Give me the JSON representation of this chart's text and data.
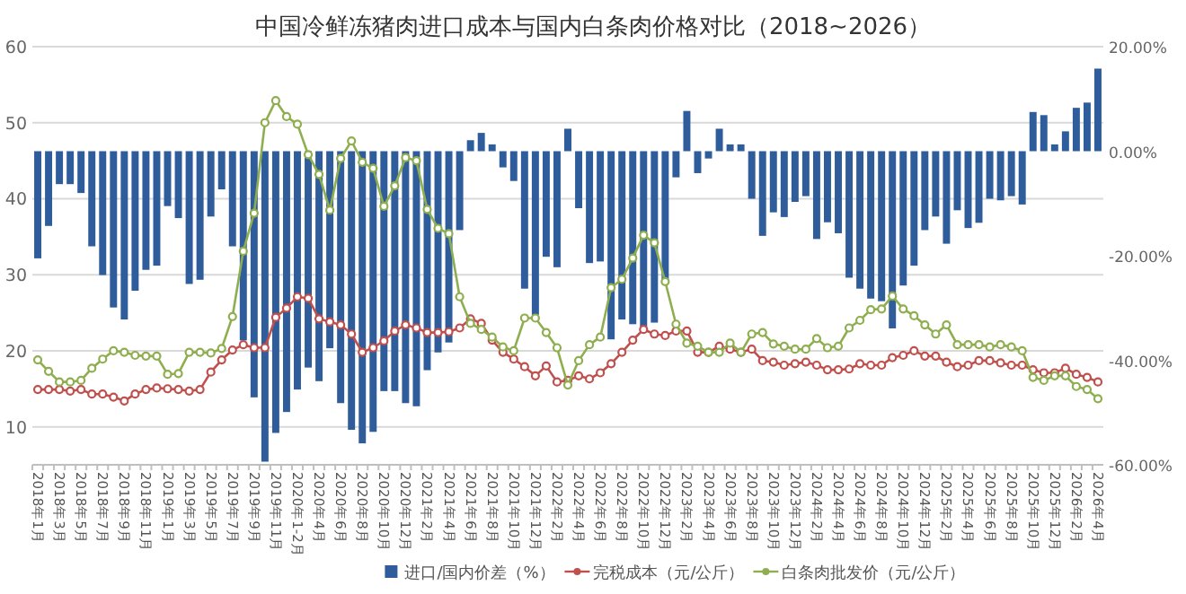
{
  "chart_data": {
    "type": "bar",
    "title": "中国冷鲜冻猪肉进口成本与国内白条肉价格对比（2018~2026）",
    "categories": [
      "2018年1月",
      null,
      "2018年3月",
      null,
      "2018年5月",
      null,
      "2018年7月",
      null,
      "2018年9月",
      null,
      "2018年11月",
      null,
      "2019年1月",
      null,
      "2019年3月",
      null,
      "2019年5月",
      null,
      "2019年7月",
      null,
      "2019年9月",
      null,
      "2019年11月",
      null,
      "2020年1-2月",
      null,
      "2020年4月",
      null,
      "2020年6月",
      null,
      "2020年8月",
      null,
      "2020年10月",
      null,
      "2020年12月",
      null,
      "2021年2月",
      null,
      "2021年4月",
      null,
      "2021年6月",
      null,
      "2021年8月",
      null,
      "2021年10月",
      null,
      "2021年12月",
      null,
      "2022年2月",
      null,
      "2022年4月",
      null,
      "2022年6月",
      null,
      "2022年8月",
      null,
      "2022年10月",
      null,
      "2022年12月",
      null,
      "2023年2月",
      null,
      "2023年4月",
      null,
      "2023年6月",
      null,
      "2023年8月",
      null,
      "2023年10月",
      null,
      "2023年12月",
      null,
      "2024年2月",
      null,
      "2024年4月",
      null,
      "2024年6月",
      null,
      "2024年8月",
      null,
      "2024年10月",
      null,
      "2024年12月",
      null,
      "2025年2月",
      null,
      "2025年4月",
      null,
      "2025年6月",
      null,
      "2025年8月",
      null,
      "2025年10月",
      null,
      "2025年12月",
      null,
      "2026年2月",
      null,
      "2026年4月"
    ],
    "series": [
      {
        "name": "进口/国内价差（%）",
        "axis": "y2",
        "color": "#2f5d9b",
        "values": [
          -20.5,
          -14.3,
          -6.3,
          -6.3,
          -8.0,
          -18.2,
          -23.7,
          -29.9,
          -32.2,
          -26.7,
          -22.7,
          -21.9,
          -10.5,
          -12.8,
          -25.4,
          -24.6,
          -12.5,
          -7.3,
          -18.2,
          -36.2,
          -47.1,
          -59.4,
          -53.9,
          -49.9,
          -45.6,
          -41.4,
          -44.0,
          -37.7,
          -48.2,
          -53.3,
          -55.9,
          -53.7,
          -45.9,
          -45.9,
          -48.2,
          -48.8,
          -41.9,
          -38.5,
          -36.6,
          -15.1,
          2.1,
          3.5,
          1.3,
          -3.1,
          -5.7,
          -26.3,
          -31.3,
          -20.2,
          -22.2,
          4.3,
          -10.9,
          -21.4,
          -21.1,
          -36.0,
          -32.2,
          -33.1,
          -33.6,
          -32.8,
          -25.1,
          -5.0,
          7.7,
          -4.2,
          -1.4,
          4.3,
          1.3,
          1.3,
          -9.1,
          -16.2,
          -11.7,
          -12.6,
          -9.7,
          -8.6,
          -16.8,
          -13.6,
          -15.7,
          -24.2,
          -26.3,
          -28.2,
          -28.7,
          -33.9,
          -25.7,
          -21.9,
          -15.1,
          -12.5,
          -17.7,
          -11.3,
          -14.7,
          -13.7,
          -9.1,
          -9.4,
          -8.6,
          -10.2,
          7.5,
          6.9,
          1.3,
          3.8,
          8.3,
          9.3,
          15.8
        ]
      },
      {
        "name": "完税成本（元/公斤）",
        "type": "line",
        "color": "#c0504d",
        "values": [
          14.9,
          14.9,
          14.9,
          14.7,
          14.9,
          14.3,
          14.3,
          13.9,
          13.4,
          14.3,
          14.9,
          15.1,
          15.0,
          14.9,
          14.7,
          14.9,
          17.2,
          18.8,
          20.1,
          20.8,
          20.4,
          20.4,
          24.4,
          25.6,
          27.1,
          26.9,
          24.2,
          23.8,
          23.4,
          22.2,
          19.8,
          20.4,
          21.3,
          22.6,
          23.4,
          23.0,
          22.4,
          22.4,
          22.5,
          23.0,
          24.2,
          23.6,
          21.4,
          19.8,
          18.9,
          17.9,
          16.7,
          18.0,
          15.9,
          16.1,
          16.7,
          16.3,
          17.1,
          18.3,
          19.8,
          21.4,
          22.8,
          22.2,
          22.0,
          22.6,
          22.6,
          19.8,
          19.8,
          20.6,
          20.2,
          19.8,
          20.2,
          18.7,
          18.5,
          18.1,
          18.3,
          18.5,
          18.1,
          17.5,
          17.5,
          17.6,
          18.3,
          18.1,
          18.1,
          19.1,
          19.4,
          20.0,
          19.3,
          19.3,
          18.5,
          17.9,
          18.1,
          18.7,
          18.7,
          18.4,
          18.1,
          18.1,
          17.5,
          17.1,
          17.1,
          17.7,
          16.9,
          16.5,
          15.9
        ]
      },
      {
        "name": "白条肉批发价（元/公斤）",
        "type": "line",
        "color": "#8fae4f",
        "values": [
          18.8,
          17.3,
          15.9,
          15.9,
          16.1,
          17.7,
          18.9,
          20.0,
          19.8,
          19.4,
          19.3,
          19.3,
          16.9,
          17.0,
          19.8,
          19.8,
          19.7,
          20.3,
          24.5,
          33.1,
          38.1,
          50.0,
          52.9,
          50.8,
          49.8,
          45.8,
          43.2,
          38.5,
          45.3,
          47.6,
          44.8,
          44.0,
          39.0,
          41.7,
          45.4,
          45.0,
          38.6,
          36.1,
          35.4,
          27.1,
          23.6,
          22.8,
          21.8,
          20.5,
          20.0,
          24.3,
          24.3,
          22.4,
          20.4,
          15.5,
          18.7,
          20.8,
          21.8,
          28.3,
          29.4,
          32.2,
          35.2,
          34.2,
          29.1,
          23.5,
          21.0,
          20.6,
          19.8,
          19.8,
          21.0,
          19.8,
          22.2,
          22.4,
          20.9,
          20.6,
          20.2,
          20.2,
          21.6,
          20.4,
          20.6,
          23.0,
          24.0,
          25.4,
          25.5,
          27.2,
          25.5,
          24.6,
          23.4,
          22.2,
          23.4,
          20.8,
          20.8,
          20.8,
          20.5,
          20.8,
          20.5,
          20.0,
          16.5,
          16.1,
          16.7,
          16.7,
          15.3,
          14.9,
          13.7
        ]
      }
    ],
    "ylim": [
      5,
      60
    ],
    "yticks": [
      10,
      20,
      30,
      40,
      50,
      60
    ],
    "y2lim": [
      -60,
      20
    ],
    "y2ticks": [
      {
        "value": 20,
        "label": "20.00%"
      },
      {
        "value": 0,
        "label": "0.00%"
      },
      {
        "value": -20,
        "label": "-20.00%"
      },
      {
        "value": -40,
        "label": "-40.00%"
      },
      {
        "value": -60,
        "label": "-60.00%"
      }
    ],
    "grid": "y",
    "legend": "bottom",
    "marker": "circle"
  }
}
